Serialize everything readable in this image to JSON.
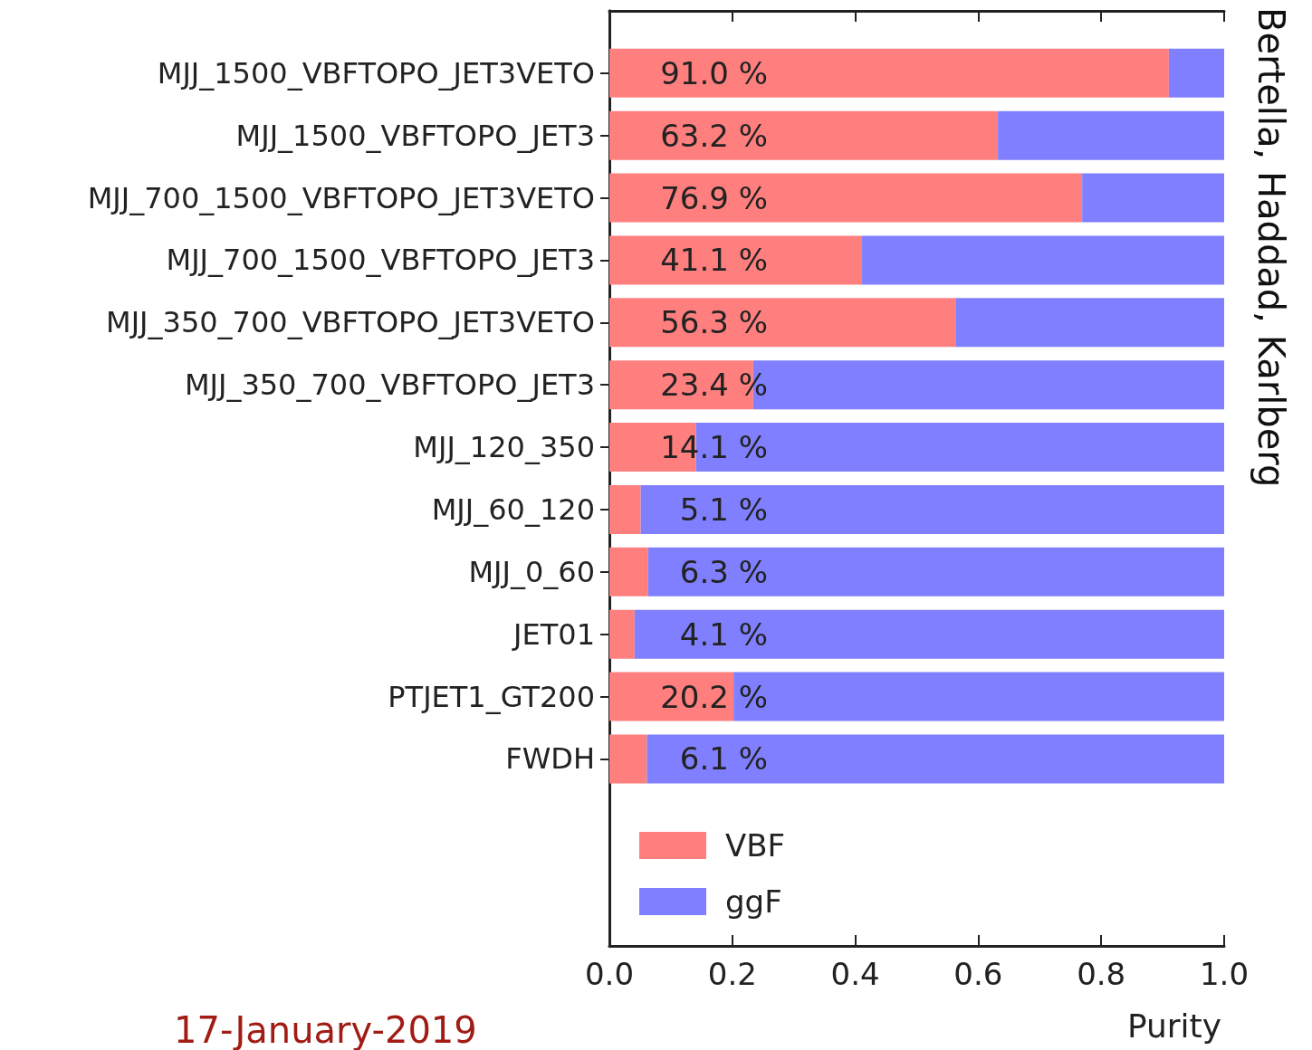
{
  "chart_data": {
    "type": "bar",
    "orientation": "horizontal",
    "stacked": true,
    "categories": [
      "MJJ_1500_VBFTOPO_JET3VETO",
      "MJJ_1500_VBFTOPO_JET3",
      "MJJ_700_1500_VBFTOPO_JET3VETO",
      "MJJ_700_1500_VBFTOPO_JET3",
      "MJJ_350_700_VBFTOPO_JET3VETO",
      "MJJ_350_700_VBFTOPO_JET3",
      "MJJ_120_350",
      "MJJ_60_120",
      "MJJ_0_60",
      "JET01",
      "PTJET1_GT200",
      "FWDH"
    ],
    "series": [
      {
        "name": "VBF",
        "color": "#ff7f7f",
        "values": [
          0.91,
          0.632,
          0.769,
          0.411,
          0.563,
          0.234,
          0.141,
          0.051,
          0.063,
          0.041,
          0.202,
          0.061
        ],
        "value_labels": [
          "91.0 %",
          "63.2 %",
          "76.9 %",
          "41.1 %",
          "56.3 %",
          "23.4 %",
          "14.1 %",
          "5.1 %",
          "6.3 %",
          "4.1 %",
          "20.2 %",
          "6.1 %"
        ]
      },
      {
        "name": "ggF",
        "color": "#7f7fff",
        "values": [
          0.09,
          0.368,
          0.231,
          0.589,
          0.437,
          0.766,
          0.859,
          0.949,
          0.937,
          0.959,
          0.798,
          0.939
        ]
      }
    ],
    "xlim": [
      0,
      1
    ],
    "xticks": [
      {
        "value": 0,
        "label": "0.0"
      },
      0.2,
      0.4,
      0.6,
      0.8,
      {
        "value": 1,
        "label": "1.0"
      }
    ],
    "xlabel": "Purity",
    "legend": "bottom left",
    "annotations": [
      "17-January-2019",
      "Bertella, Haddad, Karlberg"
    ]
  }
}
